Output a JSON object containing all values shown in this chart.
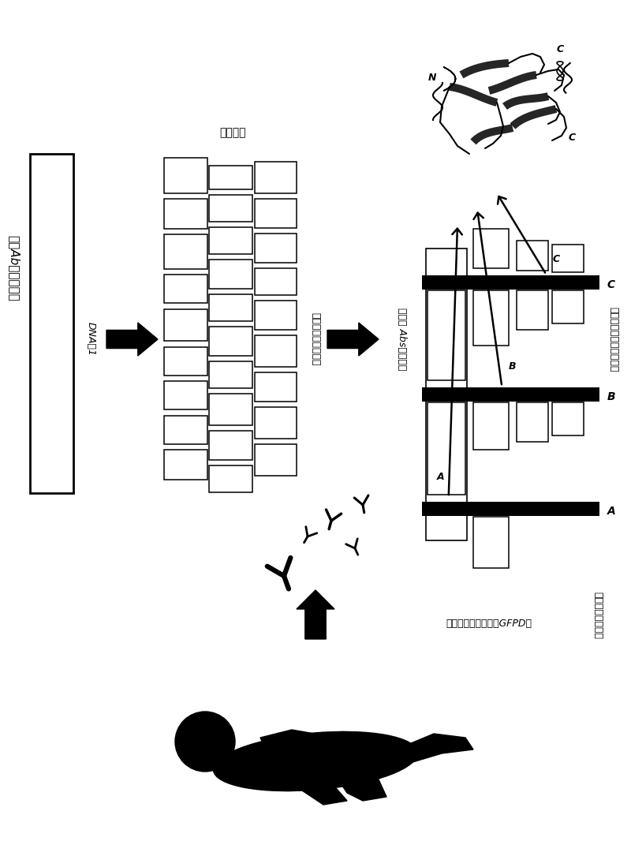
{
  "bg_color": "#ffffff",
  "label_gene": "编码Ab靶标的基因",
  "label_gene_fragments": "基因片段",
  "label_fragment_lib": "基因片段发酵菌体库",
  "label_human_abs": "在人类 Abs上平移序",
  "label_recover_lib": "恢复基因片段发酵菌体库",
  "label_recover_frags": "基因片段哘菌体库",
  "label_gfpd": "基因片段哘菌体库（GFPD）",
  "label_dna": "DNA酶1"
}
